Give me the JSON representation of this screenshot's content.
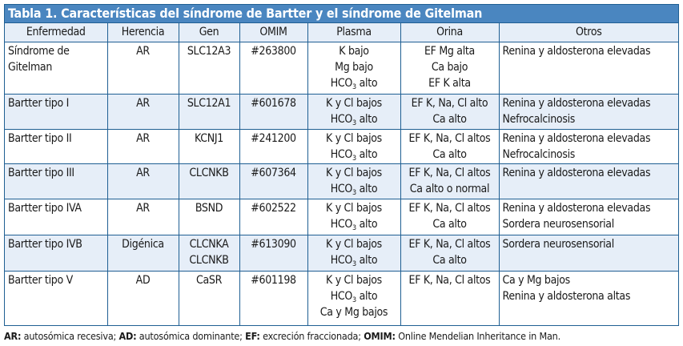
{
  "table": {
    "title": "Tabla 1. Características del síndrome de Bartter y el síndrome de Gitelman",
    "columns": [
      "Enfermedad",
      "Herencia",
      "Gen",
      "OMIM",
      "Plasma",
      "Orina",
      "Otros"
    ],
    "rows": [
      {
        "enfermedad": [
          "Síndrome de",
          "Gitelman"
        ],
        "herencia": [
          "AR"
        ],
        "gen": [
          "SLC12A3"
        ],
        "omim": [
          "#263800"
        ],
        "plasma": [
          "K bajo",
          "Mg bajo",
          "HCO3 alto"
        ],
        "orina": [
          "EF Mg alta",
          "Ca bajo",
          "EF K alta"
        ],
        "otros": [
          "Renina y aldosterona elevadas"
        ]
      },
      {
        "enfermedad": [
          "Bartter tipo I"
        ],
        "herencia": [
          "AR"
        ],
        "gen": [
          "SLC12A1"
        ],
        "omim": [
          "#601678"
        ],
        "plasma": [
          "K y Cl bajos",
          "HCO3 alto"
        ],
        "orina": [
          "EF K, Na, Cl alto",
          "Ca alto"
        ],
        "otros": [
          "Renina y aldosterona elevadas",
          "Nefrocalcinosis"
        ]
      },
      {
        "enfermedad": [
          "Bartter tipo II"
        ],
        "herencia": [
          "AR"
        ],
        "gen": [
          "KCNJ1"
        ],
        "omim": [
          "#241200"
        ],
        "plasma": [
          "K y Cl bajos",
          "HCO3 alto"
        ],
        "orina": [
          "EF K, Na, Cl altos",
          "Ca alto"
        ],
        "otros": [
          "Renina y aldosterona elevadas",
          "Nefrocalcinosis"
        ]
      },
      {
        "enfermedad": [
          "Bartter tipo III"
        ],
        "herencia": [
          "AR"
        ],
        "gen": [
          "CLCNKB"
        ],
        "omim": [
          "#607364"
        ],
        "plasma": [
          "K y Cl bajos",
          "HCO3 alto"
        ],
        "orina": [
          "EF K, Na, Cl altos",
          "Ca alto o normal"
        ],
        "otros": [
          "Renina y aldosterona elevadas"
        ]
      },
      {
        "enfermedad": [
          "Bartter tipo IVA"
        ],
        "herencia": [
          "AR"
        ],
        "gen": [
          "BSND"
        ],
        "omim": [
          "#602522"
        ],
        "plasma": [
          "K y Cl bajos",
          "HCO3 alto"
        ],
        "orina": [
          "EF K, Na, Cl altos",
          "Ca alto"
        ],
        "otros": [
          "Renina y aldosterona elevadas",
          "Sordera neurosensorial"
        ]
      },
      {
        "enfermedad": [
          "Bartter tipo IVB"
        ],
        "herencia": [
          "Digénica"
        ],
        "gen": [
          "CLCNKA",
          "CLCNKB"
        ],
        "omim": [
          "#613090"
        ],
        "plasma": [
          "K y Cl bajos",
          "HCO3 alto"
        ],
        "orina": [
          "EF K, Na, Cl altos",
          "Ca alto"
        ],
        "otros": [
          "Sordera neurosensorial"
        ]
      },
      {
        "enfermedad": [
          "Bartter tipo V"
        ],
        "herencia": [
          "AD"
        ],
        "gen": [
          "CaSR"
        ],
        "omim": [
          "#601198"
        ],
        "plasma": [
          "K y Cl bajos",
          "HCO3 alto",
          "Ca y Mg bajos"
        ],
        "orina": [
          "EF K, Na, Cl altos"
        ],
        "otros": [
          "Ca y Mg bajos",
          "Renina y aldosterona altas"
        ]
      }
    ]
  },
  "footer": [
    {
      "abbr": "AR:",
      "text": " autosómica recesiva; "
    },
    {
      "abbr": "AD:",
      "text": " autosómica dominante; "
    },
    {
      "abbr": "EF:",
      "text": " excreción fraccionada; "
    },
    {
      "abbr": "OMIM:",
      "text": " Online Mendelian Inheritance in Man."
    }
  ],
  "colors": {
    "title_bg": "#4a86c0",
    "border": "#1f5f93",
    "alt_row_bg": "#e6eef8"
  }
}
